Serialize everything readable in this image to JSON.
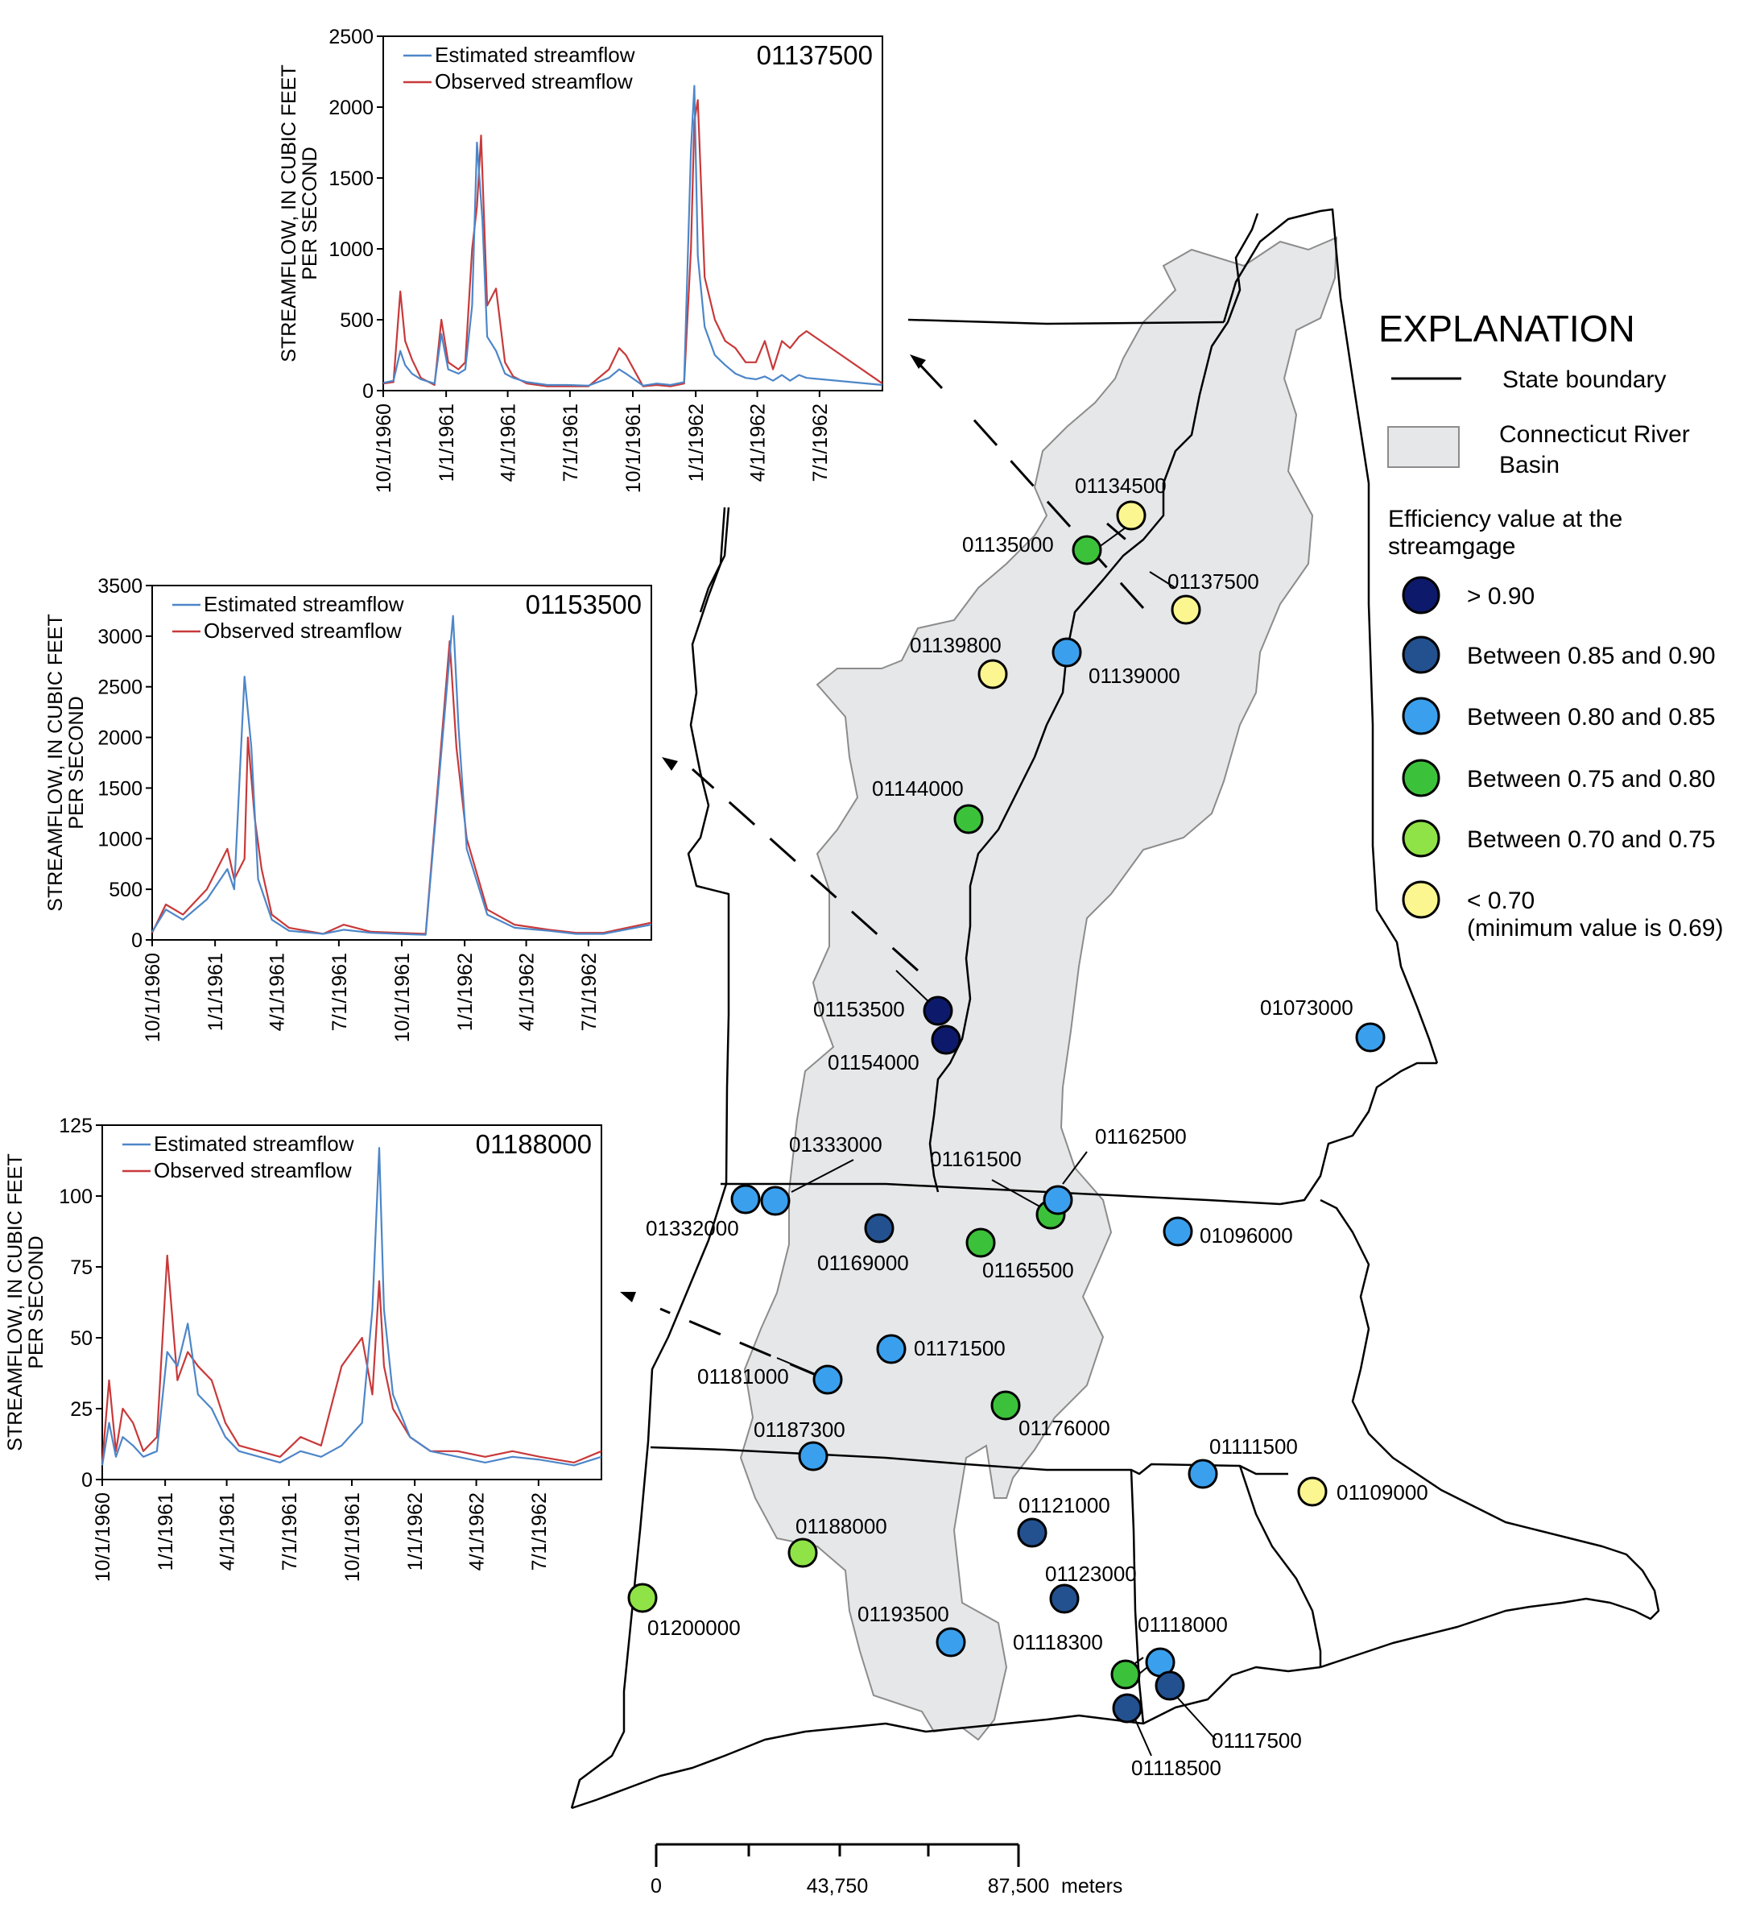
{
  "legend": {
    "title": "EXPLANATION",
    "state_boundary": "State boundary",
    "basin_line1": "Connecticut River",
    "basin_line2": "Basin",
    "efficiency_line1": "Efficiency value at the",
    "efficiency_line2": "streamgage",
    "classes": [
      {
        "label": "> 0.90",
        "note": "",
        "color": "#0d1a6b"
      },
      {
        "label": "Between 0.85 and 0.90",
        "note": "",
        "color": "#23518f"
      },
      {
        "label": "Between 0.80 and 0.85",
        "note": "",
        "color": "#3aa0ee"
      },
      {
        "label": "Between 0.75 and 0.80",
        "note": "",
        "color": "#3cc23a"
      },
      {
        "label": "Between 0.70 and 0.75",
        "note": "",
        "color": "#8fe346"
      },
      {
        "label": "< 0.70",
        "note": "(minimum value is 0.69)",
        "color": "#fbf690"
      }
    ]
  },
  "colors": {
    "basin_fill": "#e6e7e8",
    "basin_edge": "#8c8c8c",
    "estimated_line": "#4d86c8",
    "observed_line": "#c8393a"
  },
  "gages": [
    {
      "id": "01134500",
      "cls": 5
    },
    {
      "id": "01135000",
      "cls": 3
    },
    {
      "id": "01137500",
      "cls": 5
    },
    {
      "id": "01139800",
      "cls": 5
    },
    {
      "id": "01139000",
      "cls": 2
    },
    {
      "id": "01144000",
      "cls": 3
    },
    {
      "id": "01153500",
      "cls": 0
    },
    {
      "id": "01154000",
      "cls": 0
    },
    {
      "id": "01073000",
      "cls": 2
    },
    {
      "id": "01333000",
      "cls": 2
    },
    {
      "id": "01332000",
      "cls": 2
    },
    {
      "id": "01169000",
      "cls": 1
    },
    {
      "id": "01165500",
      "cls": 3
    },
    {
      "id": "01161500",
      "cls": 3
    },
    {
      "id": "01162500",
      "cls": 2
    },
    {
      "id": "01096000",
      "cls": 2
    },
    {
      "id": "01171500",
      "cls": 2
    },
    {
      "id": "01181000",
      "cls": 2
    },
    {
      "id": "01176000",
      "cls": 3
    },
    {
      "id": "01187300",
      "cls": 2
    },
    {
      "id": "01111500",
      "cls": 2
    },
    {
      "id": "01109000",
      "cls": 5
    },
    {
      "id": "01121000",
      "cls": 1
    },
    {
      "id": "01188000",
      "cls": 4
    },
    {
      "id": "01123000",
      "cls": 1
    },
    {
      "id": "01200000",
      "cls": 4
    },
    {
      "id": "01193500",
      "cls": 2
    },
    {
      "id": "01118000",
      "cls": 2
    },
    {
      "id": "01118300",
      "cls": 3
    },
    {
      "id": "01117500",
      "cls": 1
    },
    {
      "id": "01118500",
      "cls": 1
    }
  ],
  "scalebar": {
    "labels": [
      "0",
      "43,750",
      "87,500"
    ],
    "unit": "meters"
  },
  "chart_data": [
    {
      "type": "line",
      "gage": "01137500",
      "ylabel_line1": "STREAMFLOW, IN CUBIC FEET",
      "ylabel_line2": "PER SECOND",
      "ylim": [
        0,
        2500
      ],
      "yticks": [
        0,
        500,
        1000,
        1500,
        2000,
        2500
      ],
      "xlim": [
        "1960-10-01",
        "1962-10-01"
      ],
      "xticks": [
        "10/1/1960",
        "1/1/1961",
        "4/1/1961",
        "7/1/1961",
        "10/1/1961",
        "1/1/1962",
        "4/1/1962",
        "7/1/1962"
      ],
      "series": [
        {
          "name": "Estimated streamflow",
          "role": "estimated",
          "values": [
            [
              0,
              55
            ],
            [
              15,
              70
            ],
            [
              25,
              280
            ],
            [
              32,
              180
            ],
            [
              42,
              120
            ],
            [
              55,
              80
            ],
            [
              75,
              50
            ],
            [
              85,
              400
            ],
            [
              95,
              150
            ],
            [
              110,
              120
            ],
            [
              120,
              150
            ],
            [
              130,
              600
            ],
            [
              137,
              1750
            ],
            [
              145,
              1200
            ],
            [
              152,
              380
            ],
            [
              165,
              280
            ],
            [
              178,
              120
            ],
            [
              190,
              90
            ],
            [
              210,
              60
            ],
            [
              240,
              40
            ],
            [
              270,
              40
            ],
            [
              300,
              35
            ],
            [
              330,
              90
            ],
            [
              345,
              150
            ],
            [
              355,
              120
            ],
            [
              380,
              35
            ],
            [
              400,
              50
            ],
            [
              420,
              40
            ],
            [
              440,
              60
            ],
            [
              450,
              1700
            ],
            [
              455,
              2150
            ],
            [
              460,
              950
            ],
            [
              470,
              450
            ],
            [
              485,
              250
            ],
            [
              500,
              180
            ],
            [
              515,
              120
            ],
            [
              530,
              90
            ],
            [
              545,
              80
            ],
            [
              558,
              100
            ],
            [
              570,
              70
            ],
            [
              583,
              110
            ],
            [
              595,
              70
            ],
            [
              608,
              110
            ],
            [
              619,
              90
            ],
            [
              730,
              40
            ]
          ]
        },
        {
          "name": "Observed streamflow",
          "role": "observed",
          "values": [
            [
              0,
              50
            ],
            [
              15,
              60
            ],
            [
              25,
              700
            ],
            [
              32,
              350
            ],
            [
              42,
              220
            ],
            [
              55,
              90
            ],
            [
              75,
              40
            ],
            [
              85,
              500
            ],
            [
              95,
              200
            ],
            [
              110,
              150
            ],
            [
              120,
              200
            ],
            [
              130,
              1000
            ],
            [
              137,
              1300
            ],
            [
              143,
              1800
            ],
            [
              152,
              600
            ],
            [
              165,
              720
            ],
            [
              178,
              200
            ],
            [
              190,
              100
            ],
            [
              210,
              50
            ],
            [
              240,
              30
            ],
            [
              270,
              30
            ],
            [
              300,
              30
            ],
            [
              330,
              150
            ],
            [
              345,
              300
            ],
            [
              355,
              250
            ],
            [
              380,
              30
            ],
            [
              400,
              40
            ],
            [
              420,
              30
            ],
            [
              440,
              50
            ],
            [
              450,
              1000
            ],
            [
              455,
              1900
            ],
            [
              460,
              2050
            ],
            [
              470,
              800
            ],
            [
              485,
              500
            ],
            [
              500,
              350
            ],
            [
              515,
              300
            ],
            [
              530,
              200
            ],
            [
              545,
              200
            ],
            [
              558,
              350
            ],
            [
              570,
              150
            ],
            [
              583,
              350
            ],
            [
              595,
              300
            ],
            [
              608,
              380
            ],
            [
              619,
              420
            ],
            [
              730,
              50
            ]
          ]
        }
      ]
    },
    {
      "type": "line",
      "gage": "01153500",
      "ylabel_line1": "STREAMFLOW, IN CUBIC FEET",
      "ylabel_line2": "PER SECOND",
      "ylim": [
        0,
        3500
      ],
      "yticks": [
        0,
        500,
        1000,
        1500,
        2000,
        2500,
        3000,
        3500
      ],
      "xlim": [
        "1960-10-01",
        "1962-10-01"
      ],
      "xticks": [
        "10/1/1960",
        "1/1/1961",
        "4/1/1961",
        "7/1/1961",
        "10/1/1961",
        "1/1/1962",
        "4/1/1962",
        "7/1/1962"
      ],
      "series": [
        {
          "name": "Estimated streamflow",
          "role": "estimated",
          "values": [
            [
              0,
              80
            ],
            [
              20,
              300
            ],
            [
              45,
              200
            ],
            [
              80,
              400
            ],
            [
              110,
              700
            ],
            [
              120,
              500
            ],
            [
              135,
              2600
            ],
            [
              145,
              1900
            ],
            [
              155,
              600
            ],
            [
              175,
              200
            ],
            [
              200,
              90
            ],
            [
              250,
              60
            ],
            [
              280,
              100
            ],
            [
              320,
              70
            ],
            [
              360,
              60
            ],
            [
              400,
              50
            ],
            [
              440,
              3200
            ],
            [
              448,
              2100
            ],
            [
              460,
              900
            ],
            [
              490,
              250
            ],
            [
              530,
              120
            ],
            [
              580,
              90
            ],
            [
              620,
              60
            ],
            [
              660,
              60
            ],
            [
              730,
              150
            ]
          ]
        },
        {
          "name": "Observed streamflow",
          "role": "observed",
          "values": [
            [
              0,
              70
            ],
            [
              20,
              350
            ],
            [
              45,
              250
            ],
            [
              80,
              500
            ],
            [
              110,
              900
            ],
            [
              120,
              600
            ],
            [
              135,
              800
            ],
            [
              140,
              2000
            ],
            [
              150,
              1200
            ],
            [
              160,
              700
            ],
            [
              175,
              250
            ],
            [
              200,
              120
            ],
            [
              250,
              60
            ],
            [
              280,
              150
            ],
            [
              320,
              80
            ],
            [
              360,
              70
            ],
            [
              400,
              60
            ],
            [
              435,
              2950
            ],
            [
              445,
              1900
            ],
            [
              460,
              1000
            ],
            [
              490,
              300
            ],
            [
              530,
              150
            ],
            [
              580,
              100
            ],
            [
              620,
              70
            ],
            [
              660,
              70
            ],
            [
              730,
              170
            ]
          ]
        }
      ]
    },
    {
      "type": "line",
      "gage": "01188000",
      "ylabel_line1": "STREAMFLOW, IN CUBIC FEET",
      "ylabel_line2": "PER SECOND",
      "ylim": [
        0,
        125
      ],
      "yticks": [
        0,
        25,
        50,
        75,
        100,
        125
      ],
      "xlim": [
        "1960-10-01",
        "1962-10-01"
      ],
      "xticks": [
        "10/1/1960",
        "1/1/1961",
        "4/1/1961",
        "7/1/1961",
        "10/1/1961",
        "1/1/1962",
        "4/1/1962",
        "7/1/1962"
      ],
      "series": [
        {
          "name": "Estimated streamflow",
          "role": "estimated",
          "values": [
            [
              0,
              5
            ],
            [
              10,
              20
            ],
            [
              20,
              8
            ],
            [
              30,
              15
            ],
            [
              45,
              12
            ],
            [
              60,
              8
            ],
            [
              80,
              10
            ],
            [
              95,
              45
            ],
            [
              110,
              40
            ],
            [
              125,
              55
            ],
            [
              140,
              30
            ],
            [
              160,
              25
            ],
            [
              180,
              15
            ],
            [
              200,
              10
            ],
            [
              230,
              8
            ],
            [
              260,
              6
            ],
            [
              290,
              10
            ],
            [
              320,
              8
            ],
            [
              350,
              12
            ],
            [
              380,
              20
            ],
            [
              395,
              60
            ],
            [
              405,
              117
            ],
            [
              412,
              60
            ],
            [
              425,
              30
            ],
            [
              450,
              15
            ],
            [
              480,
              10
            ],
            [
              520,
              8
            ],
            [
              560,
              6
            ],
            [
              600,
              8
            ],
            [
              640,
              7
            ],
            [
              690,
              5
            ],
            [
              730,
              8
            ]
          ]
        },
        {
          "name": "Observed streamflow",
          "role": "observed",
          "values": [
            [
              0,
              6
            ],
            [
              10,
              35
            ],
            [
              20,
              10
            ],
            [
              30,
              25
            ],
            [
              45,
              20
            ],
            [
              60,
              10
            ],
            [
              80,
              15
            ],
            [
              95,
              79
            ],
            [
              110,
              35
            ],
            [
              125,
              45
            ],
            [
              140,
              40
            ],
            [
              160,
              35
            ],
            [
              180,
              20
            ],
            [
              200,
              12
            ],
            [
              230,
              10
            ],
            [
              260,
              8
            ],
            [
              290,
              15
            ],
            [
              320,
              12
            ],
            [
              350,
              40
            ],
            [
              380,
              50
            ],
            [
              395,
              30
            ],
            [
              405,
              70
            ],
            [
              412,
              40
            ],
            [
              425,
              25
            ],
            [
              450,
              15
            ],
            [
              480,
              10
            ],
            [
              520,
              10
            ],
            [
              560,
              8
            ],
            [
              600,
              10
            ],
            [
              640,
              8
            ],
            [
              690,
              6
            ],
            [
              730,
              10
            ]
          ]
        }
      ]
    }
  ]
}
